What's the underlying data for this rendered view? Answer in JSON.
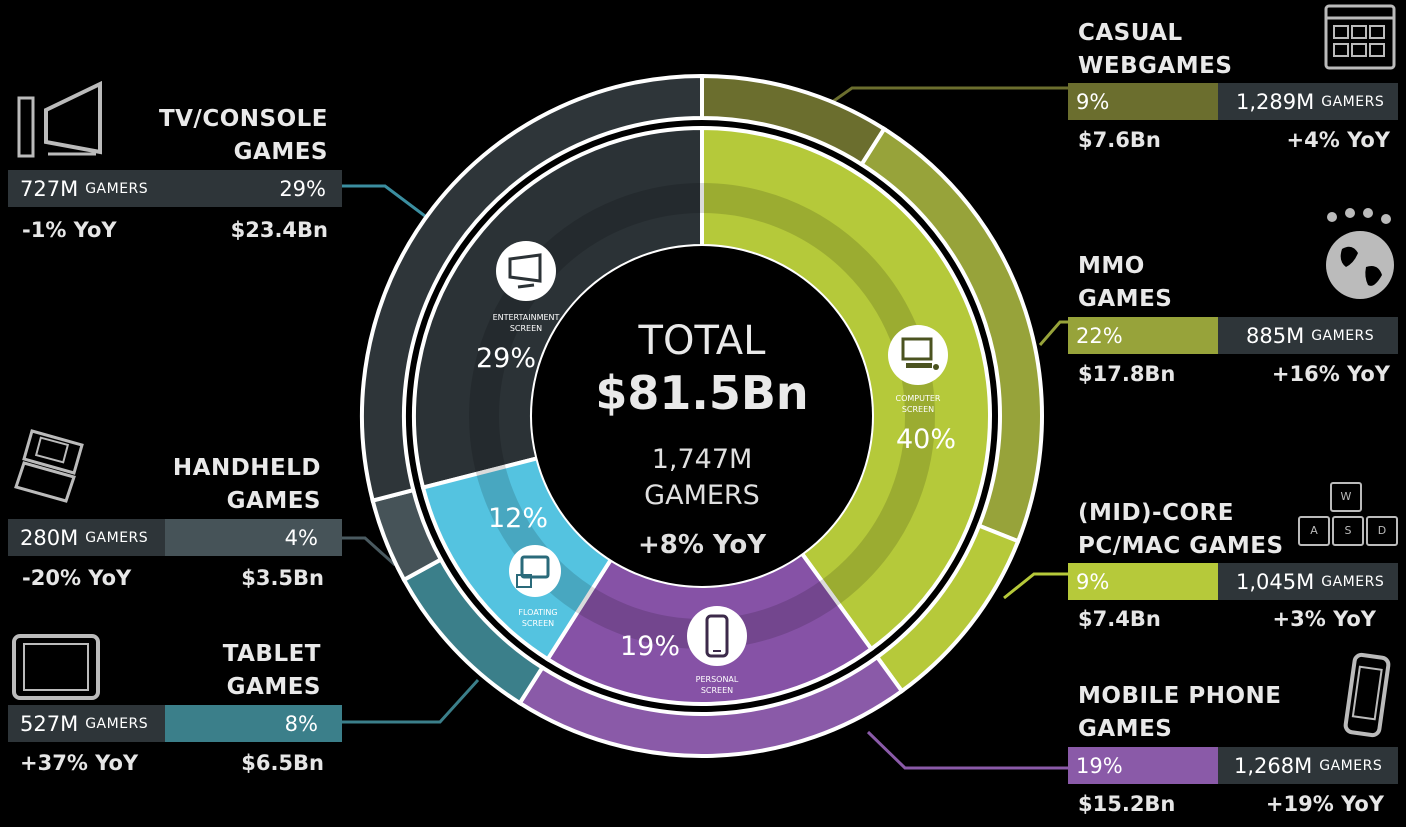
{
  "center": {
    "title": "TOTAL",
    "revenue": "$81.5Bn",
    "gamers_line1": "1,747M",
    "gamers_line2": "GAMERS",
    "growth": "+8% YoY"
  },
  "inner_ring": [
    {
      "label_line1": "ENTERTAINMENT",
      "label_line2": "SCREEN",
      "percent_text": "29%",
      "icon": "tv-icon"
    },
    {
      "label_line1": "COMPUTER",
      "label_line2": "SCREEN",
      "percent_text": "40%",
      "icon": "desktop-computer-icon"
    },
    {
      "label_line1": "PERSONAL",
      "label_line2": "SCREEN",
      "percent_text": "19%",
      "icon": "smartphone-icon"
    },
    {
      "label_line1": "FLOATING",
      "label_line2": "SCREEN",
      "percent_text": "12%",
      "icon": "tablet-handheld-icon"
    }
  ],
  "segments": {
    "tv_console": {
      "title_line1": "TV/CONSOLE",
      "title_line2": "GAMES",
      "gamers": "727M",
      "gamers_label": "GAMERS",
      "share": "29%",
      "yoy": "-1% YoY",
      "revenue": "$23.4Bn",
      "icon": "tv-console-icon"
    },
    "handheld": {
      "title_line1": "HANDHELD",
      "title_line2": "GAMES",
      "gamers": "280M",
      "gamers_label": "GAMERS",
      "share": "4%",
      "yoy": "-20% YoY",
      "revenue": "$3.5Bn",
      "icon": "handheld-console-icon"
    },
    "tablet": {
      "title_line1": "TABLET",
      "title_line2": "GAMES",
      "gamers": "527M",
      "gamers_label": "GAMERS",
      "share": "8%",
      "yoy": "+37% YoY",
      "revenue": "$6.5Bn",
      "icon": "tablet-icon"
    },
    "casual": {
      "title_line1": "CASUAL",
      "title_line2": "WEBGAMES",
      "gamers": "1,289M",
      "gamers_label": "GAMERS",
      "share": "9%",
      "yoy": "+4% YoY",
      "revenue": "$7.6Bn",
      "icon": "browser-window-icon"
    },
    "mmo": {
      "title_line1": "MMO",
      "title_line2": "GAMES",
      "gamers": "885M",
      "gamers_label": "GAMERS",
      "share": "22%",
      "yoy": "+16% YoY",
      "revenue": "$17.8Bn",
      "icon": "globe-people-icon"
    },
    "midcore": {
      "title_line1": "(MID)-CORE",
      "title_line2": "PC/MAC GAMES",
      "gamers": "1,045M",
      "gamers_label": "GAMERS",
      "share": "9%",
      "yoy": "+3% YoY",
      "revenue": "$7.4Bn",
      "icon": "wasd-keys-icon"
    },
    "mobile": {
      "title_line1": "MOBILE PHONE",
      "title_line2": "GAMES",
      "gamers": "1,268M",
      "gamers_label": "GAMERS",
      "share": "19%",
      "yoy": "+19% YoY",
      "revenue": "$15.2Bn",
      "icon": "mobile-phone-icon"
    }
  },
  "keys": {
    "w": "W",
    "a": "A",
    "s": "S",
    "d": "D"
  },
  "colors": {
    "background": "#000000",
    "tv_console": "#2e3539",
    "handheld": "#465358",
    "tablet": "#3b7f8a",
    "casual": "#6b6e2e",
    "mmo": "#97a33a",
    "midcore": "#b6c93a",
    "mobile": "#8a5aa8",
    "entertainment_screen": "#2b3236",
    "computer_screen": "#b5c93a",
    "personal_screen": "#8652a6",
    "floating_screen": "#54c3e0"
  },
  "chart_data": {
    "type": "pie",
    "title": "TOTAL $81.5Bn",
    "rings": [
      {
        "name": "",
        "categories": [
          "ENTERTAINMENT SCREEN",
          "COMPUTER SCREEN",
          "PERSONAL SCREEN",
          "FLOATING SCREEN"
        ],
        "values": [
          29,
          40,
          19,
          12
        ]
      },
      {
        "name": "",
        "categories": [
          "CASUAL WEBGAMES",
          "MMO GAMES",
          "(MID)-CORE PC/MAC GAMES",
          "MOBILE PHONE GAMES",
          "TABLET GAMES",
          "HANDHELD GAMES",
          "TV/CONSOLE GAMES"
        ],
        "values": [
          9,
          22,
          9,
          19,
          8,
          4,
          29
        ],
        "revenue_bn": [
          7.6,
          17.8,
          7.4,
          15.2,
          6.5,
          3.5,
          23.4
        ],
        "gamers_m": [
          1289,
          885,
          1045,
          1268,
          527,
          280,
          727
        ],
        "yoy_percent": [
          4,
          16,
          3,
          19,
          37,
          -20,
          -1
        ]
      }
    ],
    "total_revenue_bn": 81.5,
    "total_gamers_m": 1747,
    "total_yoy_percent": 8
  }
}
